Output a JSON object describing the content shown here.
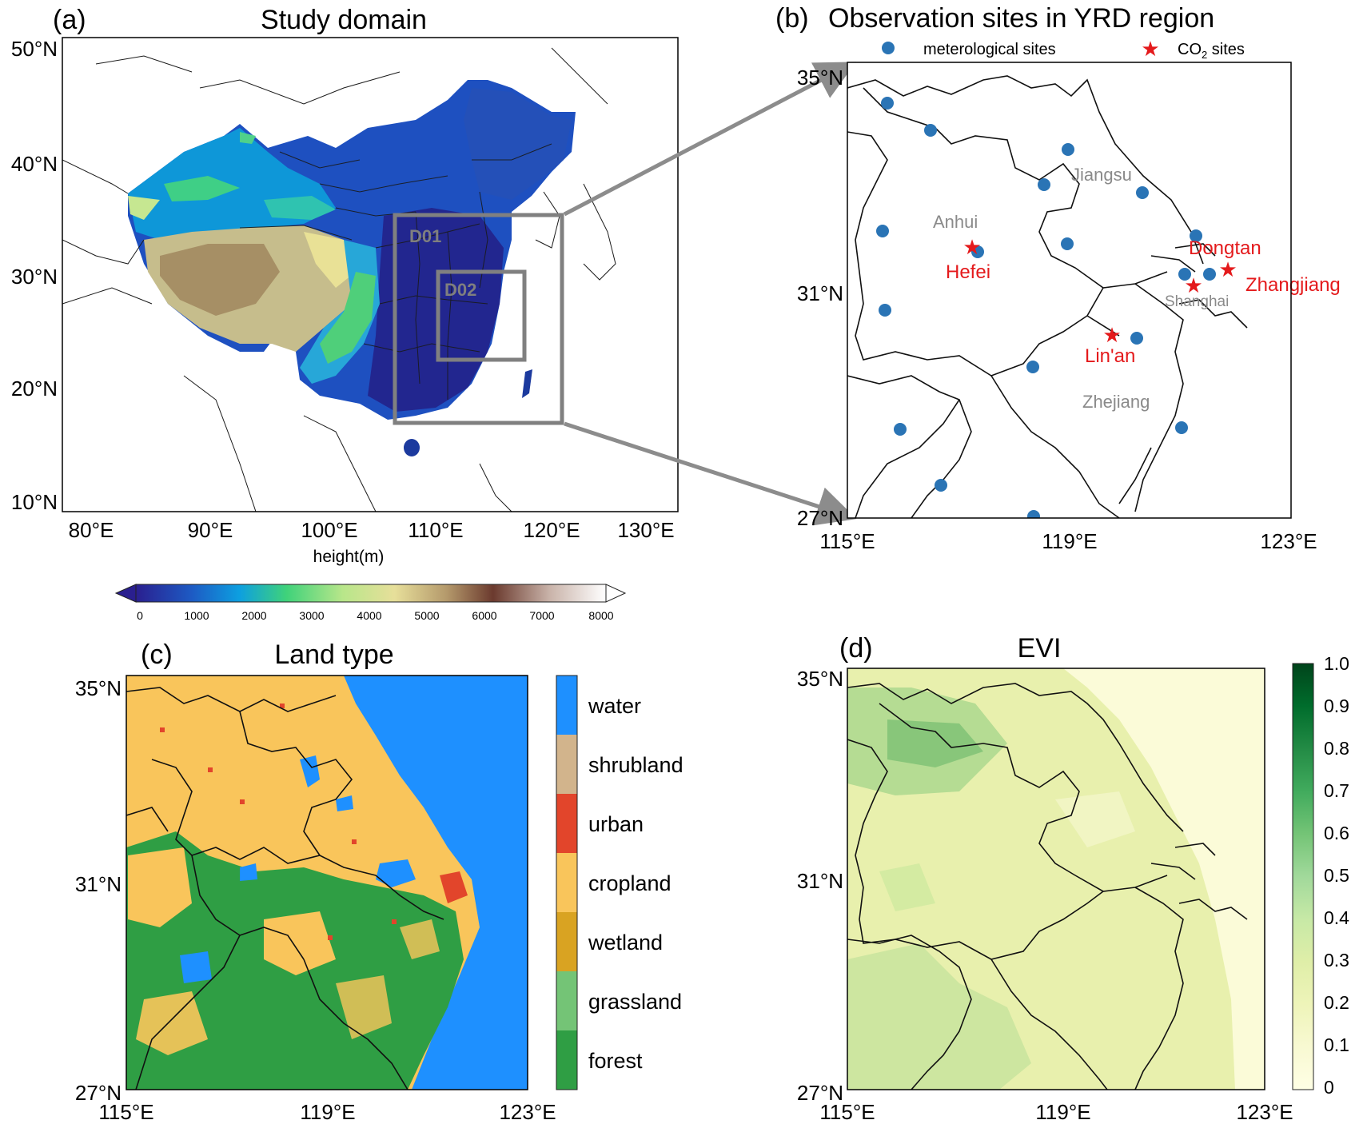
{
  "panel_a": {
    "letter": "(a)",
    "title": "Study domain",
    "lat_ticks": [
      "50°N",
      "40°N",
      "30°N",
      "20°N",
      "10°N"
    ],
    "lon_ticks": [
      "80°E",
      "90°E",
      "100°E",
      "110°E",
      "120°E",
      "130°E"
    ],
    "domain_labels": [
      "D01",
      "D02"
    ],
    "colorbar": {
      "label": "height(m)",
      "ticks": [
        "0",
        "1000",
        "2000",
        "3000",
        "4000",
        "5000",
        "6000",
        "7000",
        "8000"
      ],
      "colors": [
        "#2a1f8f",
        "#1d5bc4",
        "#0d9fe0",
        "#3fd27a",
        "#b8e68a",
        "#e7df9a",
        "#b59a6c",
        "#6b3a2e",
        "#c9b3a9",
        "#ffffff"
      ]
    }
  },
  "panel_b": {
    "letter": "(b)",
    "title": "Observation sites in YRD region",
    "legend": {
      "met_label": "meterological sites",
      "co2_label_main": "CO",
      "co2_label_sub": "2",
      "co2_label_tail": " sites"
    },
    "lat_ticks": [
      "35°N",
      "31°N",
      "27°N"
    ],
    "lon_ticks": [
      "115°E",
      "119°E",
      "123°E"
    ],
    "provinces": [
      "Jiangsu",
      "Anhui",
      "Zhejiang",
      "Shanghai"
    ],
    "co2_sites": [
      "Hefei",
      "Dongtan",
      "Zhangjiang",
      "Lin'an"
    ],
    "colors": {
      "met": "#2a74b5",
      "co2": "#e41a1c",
      "province": "#8a8a8a"
    }
  },
  "panel_c": {
    "letter": "(c)",
    "title": "Land type",
    "lat_ticks": [
      "35°N",
      "31°N",
      "27°N"
    ],
    "lon_ticks": [
      "115°E",
      "119°E",
      "123°E"
    ],
    "legend": [
      {
        "label": "water",
        "color": "#1e90ff"
      },
      {
        "label": "shrubland",
        "color": "#d2b48c"
      },
      {
        "label": "urban",
        "color": "#e2452b"
      },
      {
        "label": "cropland",
        "color": "#f9c55b"
      },
      {
        "label": "wetland",
        "color": "#d9a322"
      },
      {
        "label": "grassland",
        "color": "#74c476"
      },
      {
        "label": "forest",
        "color": "#2f9e44"
      }
    ]
  },
  "panel_d": {
    "letter": "(d)",
    "title": "EVI",
    "lat_ticks": [
      "35°N",
      "31°N",
      "27°N"
    ],
    "lon_ticks": [
      "115°E",
      "119°E",
      "123°E"
    ],
    "colorbar_ticks": [
      "1.0",
      "0.9",
      "0.8",
      "0.7",
      "0.6",
      "0.5",
      "0.4",
      "0.3",
      "0.2",
      "0.1",
      "0"
    ],
    "colorbar_colors": [
      "#00441b",
      "#006d2c",
      "#238b45",
      "#41ab5d",
      "#74c476",
      "#a1d99b",
      "#c7e9a6",
      "#dfeea8",
      "#eef4b9",
      "#f8f9d2",
      "#ffffe5"
    ]
  }
}
